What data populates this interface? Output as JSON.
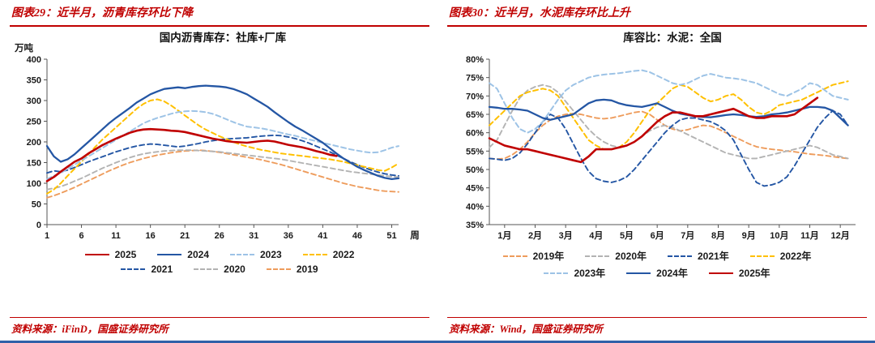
{
  "accent_color": "#C00000",
  "page_bottom_rule_color": "#3060A8",
  "panels": [
    {
      "header": "图表29：近半月，沥青库存环比下降",
      "source": "资料来源：iFinD，国盛证券研究所"
    },
    {
      "header": "图表30：近半月，水泥库存环比上升",
      "source": "资料来源：Wind，国盛证券研究所"
    }
  ],
  "chart_data": [
    {
      "type": "line",
      "title": "国内沥青库存：社库+厂库",
      "y_unit": "万吨",
      "x_unit": "周",
      "xlim": [
        1,
        52
      ],
      "ylim": [
        0,
        400
      ],
      "yticks": [
        0,
        50,
        100,
        150,
        200,
        250,
        300,
        350,
        400
      ],
      "xticks": [
        {
          "v": 1,
          "label": "1"
        },
        {
          "v": 6,
          "label": "6"
        },
        {
          "v": 11,
          "label": "11"
        },
        {
          "v": 16,
          "label": "16"
        },
        {
          "v": 21,
          "label": "21"
        },
        {
          "v": 26,
          "label": "26"
        },
        {
          "v": 31,
          "label": "31"
        },
        {
          "v": 36,
          "label": "36"
        },
        {
          "v": 41,
          "label": "41"
        },
        {
          "v": 46,
          "label": "46"
        },
        {
          "v": 51,
          "label": "51"
        }
      ],
      "legend_rows": [
        [
          "2025",
          "2024",
          "2023",
          "2022"
        ],
        [
          "2021",
          "2020",
          "2019"
        ]
      ],
      "series": [
        {
          "name": "2025",
          "label": "2025",
          "color": "#C00000",
          "dash": false,
          "width": 2.6,
          "z": 7,
          "x_start": 1,
          "values": [
            105,
            115,
            128,
            140,
            152,
            160,
            172,
            182,
            192,
            200,
            208,
            215,
            222,
            227,
            230,
            231,
            230,
            229,
            227,
            226,
            224,
            220,
            216,
            212,
            208,
            205,
            202,
            200,
            199,
            198,
            200,
            202,
            203,
            201,
            197,
            193,
            190,
            187,
            183,
            178,
            174,
            169,
            166
          ]
        },
        {
          "name": "2024",
          "label": "2024",
          "color": "#2456A4",
          "dash": false,
          "width": 2.3,
          "z": 6,
          "x_start": 1,
          "values": [
            190,
            165,
            152,
            158,
            170,
            185,
            200,
            215,
            230,
            245,
            258,
            270,
            282,
            295,
            305,
            315,
            322,
            328,
            330,
            332,
            330,
            333,
            335,
            336,
            335,
            334,
            332,
            328,
            322,
            315,
            305,
            295,
            285,
            272,
            260,
            248,
            237,
            228,
            218,
            208,
            198,
            185,
            172,
            160,
            150,
            140,
            132,
            125,
            118,
            113,
            110,
            112
          ]
        },
        {
          "name": "2023",
          "label": "2023",
          "color": "#9DC3E6",
          "dash": true,
          "width": 2,
          "z": 5,
          "x_start": 1,
          "values": [
            110,
            118,
            125,
            135,
            145,
            155,
            165,
            175,
            185,
            195,
            205,
            215,
            225,
            235,
            245,
            252,
            258,
            263,
            268,
            272,
            274,
            275,
            274,
            272,
            268,
            262,
            255,
            248,
            242,
            237,
            235,
            233,
            230,
            226,
            222,
            218,
            215,
            210,
            206,
            202,
            198,
            194,
            190,
            186,
            182,
            179,
            176,
            174,
            175,
            180,
            186,
            190
          ]
        },
        {
          "name": "2022",
          "label": "2022",
          "color": "#FFC000",
          "dash": true,
          "width": 2,
          "z": 4,
          "x_start": 1,
          "values": [
            75,
            85,
            100,
            118,
            135,
            152,
            170,
            188,
            205,
            220,
            235,
            250,
            265,
            280,
            292,
            300,
            303,
            298,
            288,
            276,
            264,
            252,
            240,
            230,
            222,
            214,
            207,
            200,
            194,
            189,
            185,
            181,
            178,
            175,
            172,
            170,
            168,
            166,
            164,
            162,
            160,
            158,
            155,
            152,
            148,
            144,
            140,
            136,
            132,
            130,
            138,
            148
          ]
        },
        {
          "name": "2021",
          "label": "2021",
          "color": "#2456A4",
          "dash": true,
          "width": 1.9,
          "z": 3,
          "x_start": 1,
          "values": [
            125,
            130,
            128,
            132,
            138,
            145,
            152,
            158,
            164,
            170,
            176,
            181,
            186,
            190,
            193,
            195,
            194,
            192,
            190,
            188,
            190,
            193,
            196,
            200,
            203,
            205,
            207,
            208,
            209,
            210,
            212,
            214,
            215,
            216,
            215,
            212,
            208,
            203,
            197,
            190,
            183,
            176,
            168,
            160,
            152,
            145,
            138,
            132,
            127,
            123,
            120,
            118
          ]
        },
        {
          "name": "2020",
          "label": "2020",
          "color": "#B3B3B3",
          "dash": true,
          "width": 1.9,
          "z": 2,
          "x_start": 1,
          "values": [
            85,
            88,
            92,
            98,
            105,
            112,
            120,
            128,
            136,
            143,
            150,
            156,
            162,
            167,
            171,
            174,
            176,
            178,
            179,
            180,
            180,
            180,
            179,
            178,
            177,
            176,
            174,
            172,
            170,
            168,
            166,
            164,
            162,
            160,
            158,
            155,
            152,
            149,
            146,
            143,
            140,
            137,
            134,
            131,
            128,
            126,
            124,
            122,
            120,
            118,
            116,
            115
          ]
        },
        {
          "name": "2019",
          "label": "2019",
          "color": "#EE9C5C",
          "dash": true,
          "width": 1.9,
          "z": 1,
          "x_start": 1,
          "values": [
            65,
            70,
            76,
            83,
            90,
            98,
            106,
            114,
            122,
            130,
            137,
            144,
            150,
            155,
            160,
            164,
            168,
            171,
            174,
            176,
            178,
            179,
            180,
            179,
            177,
            175,
            172,
            169,
            166,
            163,
            160,
            157,
            153,
            149,
            145,
            140,
            135,
            130,
            125,
            120,
            115,
            110,
            105,
            100,
            96,
            92,
            89,
            86,
            83,
            81,
            80,
            79
          ]
        }
      ]
    },
    {
      "type": "line",
      "title": "库容比：水泥：全国",
      "y_suffix": "%",
      "xlim": [
        0,
        48
      ],
      "ylim": [
        35,
        80
      ],
      "yticks": [
        35,
        40,
        45,
        50,
        55,
        60,
        65,
        70,
        75,
        80
      ],
      "xticks": [
        {
          "v": 2,
          "label": "1月"
        },
        {
          "v": 6,
          "label": "2月"
        },
        {
          "v": 10,
          "label": "3月"
        },
        {
          "v": 14,
          "label": "4月"
        },
        {
          "v": 18,
          "label": "5月"
        },
        {
          "v": 22,
          "label": "6月"
        },
        {
          "v": 26,
          "label": "7月"
        },
        {
          "v": 30,
          "label": "8月"
        },
        {
          "v": 34,
          "label": "9月"
        },
        {
          "v": 38,
          "label": "10月"
        },
        {
          "v": 42,
          "label": "11月"
        },
        {
          "v": 46,
          "label": "12月"
        }
      ],
      "legend_rows": [
        [
          "2019年",
          "2020年",
          "2021年",
          "2022年"
        ],
        [
          "2023年",
          "2024年",
          "2025年"
        ]
      ],
      "series": [
        {
          "name": "2019",
          "label": "2019年",
          "color": "#EE9C5C",
          "dash": true,
          "width": 1.9,
          "z": 1,
          "x_start": 0,
          "values": [
            53,
            52.8,
            53,
            54,
            55.5,
            57.5,
            60,
            62,
            63.5,
            64.5,
            65,
            65.2,
            65,
            64.5,
            64,
            63.8,
            64,
            64.5,
            65,
            65.5,
            65.8,
            65,
            63.5,
            62,
            61,
            60.5,
            60.8,
            61.5,
            62,
            61.8,
            61,
            60,
            59,
            58,
            57,
            56.2,
            55.8,
            55.5,
            55.3,
            55,
            54.8,
            54.5,
            54.2,
            54,
            53.8,
            53.5,
            53.2,
            53
          ]
        },
        {
          "name": "2020",
          "label": "2020年",
          "color": "#B3B3B3",
          "dash": true,
          "width": 1.9,
          "z": 2,
          "x_start": 0,
          "values": [
            56,
            58,
            62,
            66,
            69.5,
            71.5,
            72.5,
            73,
            72.5,
            71,
            68.5,
            66,
            63.5,
            61,
            59,
            57.5,
            56.5,
            56,
            56.5,
            57.5,
            59,
            60.5,
            61.5,
            62,
            61.5,
            60.5,
            59.5,
            58.5,
            57.5,
            56.5,
            55.5,
            54.5,
            54,
            53.5,
            53,
            53,
            53.5,
            54,
            54.5,
            55,
            55.5,
            56,
            56.5,
            56,
            55,
            54,
            53.5,
            53
          ]
        },
        {
          "name": "2021",
          "label": "2021年",
          "color": "#2456A4",
          "dash": true,
          "width": 1.9,
          "z": 3,
          "x_start": 0,
          "values": [
            53,
            52.8,
            52.5,
            53,
            54.5,
            57,
            60,
            63,
            65,
            64,
            61,
            57,
            53,
            49.5,
            47.5,
            46.8,
            46.5,
            47,
            48,
            50,
            52.5,
            55,
            57.5,
            60,
            62,
            63.5,
            64,
            64,
            63.5,
            63,
            62,
            60.5,
            58,
            54,
            50,
            46.5,
            45.5,
            45.8,
            46.5,
            48,
            51,
            54.5,
            58,
            61.5,
            64,
            66,
            65,
            62
          ]
        },
        {
          "name": "2022",
          "label": "2022年",
          "color": "#FFC000",
          "dash": true,
          "width": 2,
          "z": 4,
          "x_start": 0,
          "values": [
            62,
            64,
            66,
            68,
            70,
            71,
            71.5,
            72,
            71.5,
            70,
            67,
            64,
            61,
            58,
            56.5,
            55.5,
            55.5,
            56,
            57.5,
            60,
            63,
            66,
            68,
            70,
            72,
            73,
            72.5,
            71,
            69.5,
            68.5,
            69,
            70,
            70.5,
            69,
            67,
            65.5,
            65,
            66,
            67.5,
            68,
            68.5,
            69,
            70,
            71,
            72,
            73,
            73.5,
            74
          ]
        },
        {
          "name": "2023",
          "label": "2023年",
          "color": "#9DC3E6",
          "dash": true,
          "width": 2,
          "z": 5,
          "x_start": 0,
          "values": [
            73.5,
            72,
            68,
            64,
            61,
            60,
            61,
            63,
            66,
            69,
            71.5,
            73,
            74,
            75,
            75.5,
            75.8,
            76,
            76.2,
            76.5,
            76.8,
            77,
            76.5,
            75.5,
            74.5,
            73.5,
            73,
            73.5,
            74.5,
            75.5,
            76,
            75.5,
            75,
            74.8,
            74.5,
            74,
            73.5,
            72.5,
            71.5,
            70.5,
            70,
            71,
            72,
            73.5,
            73,
            71.5,
            70,
            69.5,
            69
          ]
        },
        {
          "name": "2024",
          "label": "2024年",
          "color": "#2456A4",
          "dash": false,
          "width": 2.3,
          "z": 6,
          "x_start": 0,
          "values": [
            67,
            66.8,
            66.5,
            66.5,
            66.3,
            66,
            65,
            64,
            63.5,
            64,
            64.5,
            65,
            66.5,
            68,
            68.8,
            69,
            68.8,
            68,
            67.5,
            67.2,
            67,
            67.5,
            68,
            67,
            66,
            65.2,
            64.8,
            64.5,
            64.3,
            64.2,
            64.5,
            64.8,
            65,
            64.8,
            64.5,
            64.3,
            64.5,
            65,
            65.2,
            65.5,
            66,
            66.5,
            67,
            67,
            66.8,
            66,
            64,
            62
          ]
        },
        {
          "name": "2025",
          "label": "2025年",
          "color": "#C00000",
          "dash": false,
          "width": 2.6,
          "z": 7,
          "x_start": 0,
          "values": [
            58.5,
            57.5,
            56.5,
            56,
            55.5,
            55.5,
            55,
            54.5,
            54,
            53.5,
            53,
            52.5,
            52,
            53.5,
            55.5,
            55.5,
            55.5,
            56,
            56.5,
            57.5,
            59,
            61,
            63,
            64.5,
            65.5,
            65.5,
            65,
            64.5,
            64.5,
            65,
            65.5,
            66,
            66.5,
            65.5,
            64.5,
            64,
            64,
            64.5,
            64.5,
            64.5,
            65,
            66.5,
            68,
            69.5
          ]
        }
      ]
    }
  ]
}
